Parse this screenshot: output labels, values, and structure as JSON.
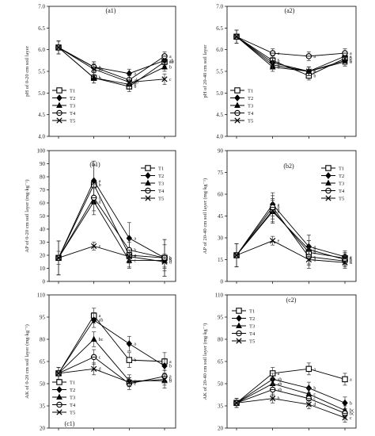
{
  "chart_data": [
    {
      "id": "a1",
      "type": "line",
      "title": "(a1)",
      "ylabel": "pH of 0-20 cm soil layer",
      "ylim": [
        4.0,
        7.0
      ],
      "yticks": [
        4.0,
        4.5,
        5.0,
        5.5,
        6.0,
        6.5,
        7.0
      ],
      "ytick_decimals": 1,
      "x": [
        0,
        1,
        2,
        3
      ],
      "legend_position": "bottom-left",
      "series": [
        {
          "name": "T1",
          "marker": "square",
          "values": [
            6.05,
            5.35,
            5.15,
            5.72
          ],
          "err": [
            0.15,
            0.12,
            0.12,
            0.1
          ],
          "letters": [
            "",
            "b",
            "b",
            "ab"
          ]
        },
        {
          "name": "T2",
          "marker": "diamond",
          "values": [
            6.05,
            5.6,
            5.45,
            5.75
          ],
          "err": [
            0.15,
            0.12,
            0.1,
            0.1
          ],
          "letters": [
            "",
            "a",
            "a",
            "ab"
          ]
        },
        {
          "name": "T3",
          "marker": "triangle",
          "values": [
            6.05,
            5.35,
            5.2,
            5.6
          ],
          "err": [
            0.15,
            0.12,
            0.1,
            0.1
          ],
          "letters": [
            "",
            "b",
            "b",
            "b"
          ]
        },
        {
          "name": "T4",
          "marker": "circle",
          "values": [
            6.05,
            5.6,
            5.3,
            5.85
          ],
          "err": [
            0.15,
            0.12,
            0.1,
            0.1
          ],
          "letters": [
            "",
            "a",
            "ab",
            "a"
          ]
        },
        {
          "name": "T5",
          "marker": "x",
          "values": [
            6.05,
            5.55,
            5.25,
            5.32
          ],
          "err": [
            0.15,
            0.12,
            0.1,
            0.12
          ],
          "letters": [
            "",
            "ab",
            "ab",
            "c"
          ]
        }
      ]
    },
    {
      "id": "a2",
      "type": "line",
      "title": "(a2)",
      "ylabel": "pH of 20-40 cm soil layer",
      "ylim": [
        4.0,
        7.0
      ],
      "yticks": [
        4.0,
        4.5,
        5.0,
        5.5,
        6.0,
        6.5,
        7.0
      ],
      "ytick_decimals": 1,
      "x": [
        0,
        1,
        2,
        3
      ],
      "legend_position": "bottom-left",
      "series": [
        {
          "name": "T1",
          "marker": "square",
          "values": [
            6.3,
            5.75,
            5.4,
            5.8
          ],
          "err": [
            0.15,
            0.1,
            0.1,
            0.1
          ],
          "letters": [
            "",
            "b",
            "b",
            "b"
          ]
        },
        {
          "name": "T2",
          "marker": "diamond",
          "values": [
            6.3,
            5.7,
            5.5,
            5.85
          ],
          "err": [
            0.15,
            0.1,
            0.1,
            0.1
          ],
          "letters": [
            "",
            "b",
            "b",
            "a"
          ]
        },
        {
          "name": "T3",
          "marker": "triangle",
          "values": [
            6.3,
            5.6,
            5.5,
            5.75
          ],
          "err": [
            0.15,
            0.1,
            0.1,
            0.1
          ],
          "letters": [
            "",
            "b",
            "b",
            "b"
          ]
        },
        {
          "name": "T4",
          "marker": "circle",
          "values": [
            6.3,
            5.92,
            5.85,
            5.92
          ],
          "err": [
            0.15,
            0.1,
            0.1,
            0.1
          ],
          "letters": [
            "",
            "a",
            "a",
            "a"
          ]
        },
        {
          "name": "T5",
          "marker": "x",
          "values": [
            6.3,
            5.65,
            5.5,
            5.72
          ],
          "err": [
            0.15,
            0.1,
            0.1,
            0.1
          ],
          "letters": [
            "",
            "b",
            "b",
            "b"
          ]
        }
      ]
    },
    {
      "id": "b1",
      "type": "line",
      "title": "(b1)",
      "ylabel": "AP of 0-20 cm soil layer (mg·kg⁻¹)",
      "ylim": [
        0,
        100
      ],
      "yticks": [
        0,
        10,
        20,
        30,
        40,
        50,
        60,
        70,
        80,
        90,
        100
      ],
      "ytick_decimals": 0,
      "x": [
        0,
        1,
        2,
        3
      ],
      "legend_position": "top-right",
      "series": [
        {
          "name": "T1",
          "marker": "square",
          "values": [
            18,
            74,
            20,
            18
          ],
          "err": [
            13,
            15,
            10,
            14
          ],
          "letters": [
            "",
            "b",
            "c",
            "a"
          ]
        },
        {
          "name": "T2",
          "marker": "diamond",
          "values": [
            18,
            77,
            33,
            18
          ],
          "err": [
            13,
            15,
            12,
            14
          ],
          "letters": [
            "",
            "a",
            "a",
            "b"
          ]
        },
        {
          "name": "T3",
          "marker": "triangle",
          "values": [
            18,
            61,
            16,
            16
          ],
          "err": [
            13,
            10,
            5,
            5
          ],
          "letters": [
            "",
            "d",
            "e",
            "b"
          ]
        },
        {
          "name": "T4",
          "marker": "circle",
          "values": [
            18,
            64,
            24,
            18
          ],
          "err": [
            13,
            10,
            8,
            10
          ],
          "letters": [
            "",
            "c",
            "b",
            "c"
          ]
        },
        {
          "name": "T5",
          "marker": "x",
          "values": [
            18,
            27,
            19,
            15
          ],
          "err": [
            5,
            3,
            5,
            5
          ],
          "letters": [
            "",
            "e",
            "d",
            "d"
          ]
        }
      ]
    },
    {
      "id": "b2",
      "type": "line",
      "title": "(b2)",
      "ylabel": "AP of 20-40 cm soil layer (mg·kg⁻¹)",
      "ylim": [
        0,
        90
      ],
      "yticks": [
        0,
        15,
        30,
        45,
        60,
        75,
        90
      ],
      "ytick_decimals": 0,
      "x": [
        0,
        1,
        2,
        3
      ],
      "legend_position": "top-right",
      "series": [
        {
          "name": "T1",
          "marker": "square",
          "values": [
            18,
            49,
            20,
            16
          ],
          "err": [
            8,
            8,
            8,
            4
          ],
          "letters": [
            "",
            "b",
            "b",
            "a"
          ]
        },
        {
          "name": "T2",
          "marker": "diamond",
          "values": [
            18,
            53,
            24,
            17
          ],
          "err": [
            8,
            8,
            8,
            4
          ],
          "letters": [
            "",
            "a",
            "a",
            "a"
          ]
        },
        {
          "name": "T3",
          "marker": "triangle",
          "values": [
            18,
            48,
            22,
            15
          ],
          "err": [
            8,
            8,
            6,
            4
          ],
          "letters": [
            "",
            "c",
            "b",
            "b"
          ]
        },
        {
          "name": "T4",
          "marker": "circle",
          "values": [
            18,
            51,
            17,
            14
          ],
          "err": [
            8,
            8,
            6,
            4
          ],
          "letters": [
            "",
            "b",
            "c",
            "c"
          ]
        },
        {
          "name": "T5",
          "marker": "x",
          "values": [
            18,
            28,
            15,
            13
          ],
          "err": [
            8,
            3,
            6,
            4
          ],
          "letters": [
            "",
            "e",
            "d",
            "d"
          ]
        }
      ]
    },
    {
      "id": "c1",
      "type": "line",
      "title": "(c1)",
      "ylabel": "AK of 0-20 cm soil layer (mg·kg⁻¹)",
      "ylim": [
        20,
        110
      ],
      "yticks": [
        20,
        35,
        50,
        65,
        80,
        95,
        110
      ],
      "ytick_decimals": 0,
      "x": [
        0,
        1,
        2,
        3
      ],
      "legend_position": "bottom-left",
      "series": [
        {
          "name": "T1",
          "marker": "square",
          "values": [
            57,
            96,
            66,
            65
          ],
          "err": [
            4,
            5,
            5,
            6
          ],
          "letters": [
            "",
            "a",
            "b",
            "a"
          ]
        },
        {
          "name": "T2",
          "marker": "diamond",
          "values": [
            57,
            93,
            77,
            62
          ],
          "err": [
            4,
            5,
            5,
            5
          ],
          "letters": [
            "",
            "ab",
            "a",
            "b"
          ]
        },
        {
          "name": "T3",
          "marker": "triangle",
          "values": [
            57,
            80,
            52,
            52
          ],
          "err": [
            4,
            5,
            4,
            5
          ],
          "letters": [
            "",
            "bc",
            "c",
            "b"
          ]
        },
        {
          "name": "T4",
          "marker": "circle",
          "values": [
            57,
            68,
            50,
            55
          ],
          "err": [
            4,
            5,
            4,
            4
          ],
          "letters": [
            "",
            "c",
            "c",
            "a"
          ]
        },
        {
          "name": "T5",
          "marker": "x",
          "values": [
            57,
            60,
            51,
            53
          ],
          "err": [
            4,
            4,
            3,
            4
          ],
          "letters": [
            "",
            "d",
            "c",
            "b"
          ]
        }
      ]
    },
    {
      "id": "c2",
      "type": "line",
      "title": "(c2)",
      "ylabel": "AK of 20-40 cm soil layer (mg·kg⁻¹)",
      "ylim": [
        20,
        110
      ],
      "yticks": [
        20,
        35,
        50,
        65,
        80,
        95,
        110
      ],
      "ytick_decimals": 0,
      "x": [
        0,
        1,
        2,
        3
      ],
      "legend_position": "top-left",
      "series": [
        {
          "name": "T1",
          "marker": "square",
          "values": [
            37,
            57,
            60,
            53
          ],
          "err": [
            3,
            4,
            4,
            4
          ],
          "letters": [
            "",
            "a",
            "a",
            "a"
          ]
        },
        {
          "name": "T2",
          "marker": "diamond",
          "values": [
            37,
            53,
            47,
            37
          ],
          "err": [
            3,
            4,
            4,
            4
          ],
          "letters": [
            "",
            "ab",
            "b",
            "b"
          ]
        },
        {
          "name": "T3",
          "marker": "triangle",
          "values": [
            37,
            50,
            43,
            32
          ],
          "err": [
            3,
            4,
            4,
            3
          ],
          "letters": [
            "",
            "ab",
            "c",
            "bc"
          ]
        },
        {
          "name": "T4",
          "marker": "circle",
          "values": [
            37,
            46,
            40,
            30
          ],
          "err": [
            3,
            4,
            4,
            3
          ],
          "letters": [
            "",
            "ab",
            "c",
            "bc"
          ]
        },
        {
          "name": "T5",
          "marker": "x",
          "values": [
            37,
            40,
            36,
            27
          ],
          "err": [
            3,
            3,
            3,
            3
          ],
          "letters": [
            "",
            "b",
            "d",
            "c"
          ]
        }
      ]
    }
  ]
}
